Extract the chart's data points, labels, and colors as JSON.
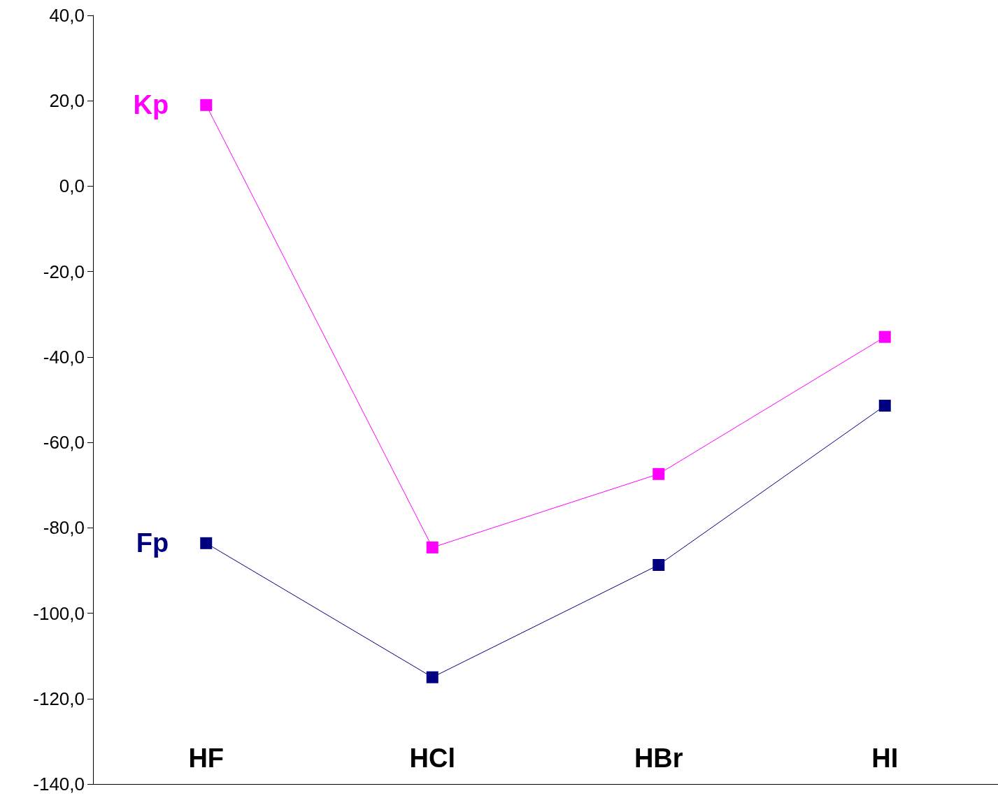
{
  "chart_data": {
    "type": "line",
    "categories": [
      "HF",
      "HCl",
      "HBr",
      "HI"
    ],
    "series": [
      {
        "name": "Kp",
        "color": "#ff00ff",
        "values": [
          19.0,
          -84.6,
          -67.4,
          -35.3
        ]
      },
      {
        "name": "Fp",
        "color": "#000080",
        "values": [
          -83.6,
          -115.0,
          -88.7,
          -51.4
        ]
      }
    ],
    "ylim": [
      -140,
      40
    ],
    "yticks": [
      {
        "value": 40,
        "label": "40,0"
      },
      {
        "value": 20,
        "label": "20,0"
      },
      {
        "value": 0,
        "label": "0,0"
      },
      {
        "value": -20,
        "label": "-20,0"
      },
      {
        "value": -40,
        "label": "-40,0"
      },
      {
        "value": -60,
        "label": "-60,0"
      },
      {
        "value": -80,
        "label": "-80,0"
      },
      {
        "value": -100,
        "label": "-100,0"
      },
      {
        "value": -120,
        "label": "-120,0"
      },
      {
        "value": -140,
        "label": "-140,0"
      }
    ],
    "marker": "square",
    "line_style": "solid",
    "grid": false,
    "legend": false
  }
}
